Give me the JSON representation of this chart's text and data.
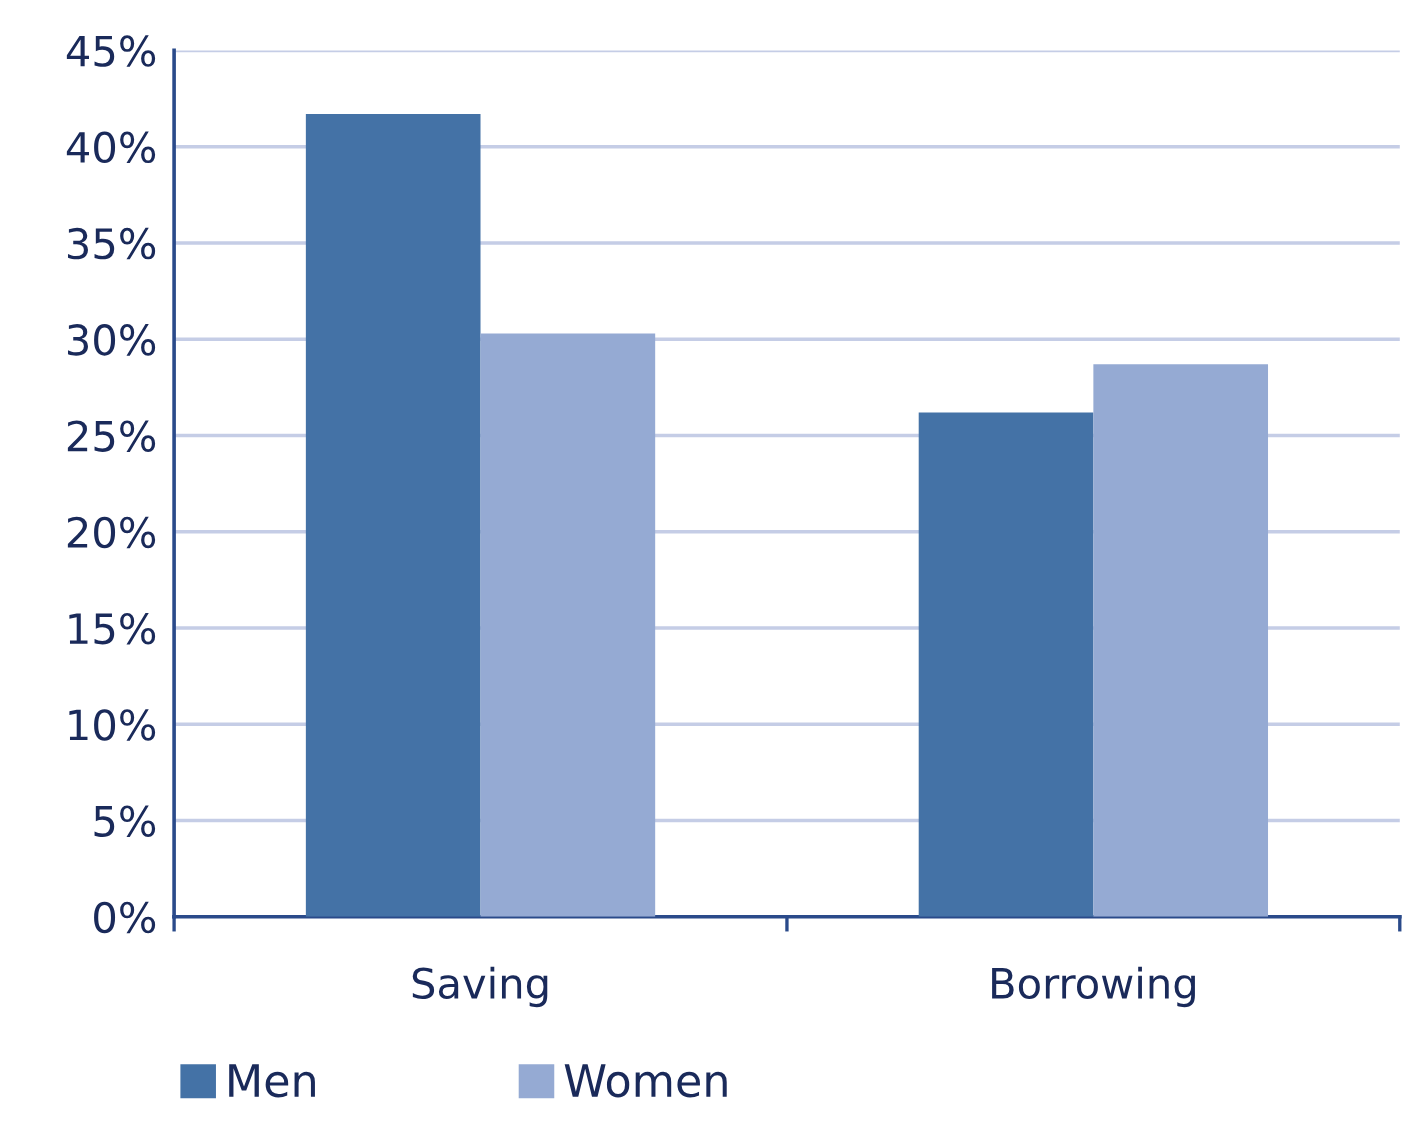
{
  "chart_data": {
    "type": "bar",
    "categories": [
      "Saving",
      "Borrowing"
    ],
    "series": [
      {
        "name": "Men",
        "color": "#4472a6",
        "values": [
          41.7,
          26.2
        ]
      },
      {
        "name": "Women",
        "color": "#95aad3",
        "values": [
          30.3,
          28.7
        ]
      }
    ],
    "ylim": [
      0,
      45
    ],
    "yticks": [
      {
        "value": 0,
        "label": "0%"
      },
      {
        "value": 5,
        "label": "5%"
      },
      {
        "value": 10,
        "label": "10%"
      },
      {
        "value": 15,
        "label": "15%"
      },
      {
        "value": 20,
        "label": "20%"
      },
      {
        "value": 25,
        "label": "25%"
      },
      {
        "value": 30,
        "label": "30%"
      },
      {
        "value": 35,
        "label": "35%"
      },
      {
        "value": 40,
        "label": "40%"
      },
      {
        "value": 45,
        "label": "45%"
      }
    ],
    "grid": "y",
    "legend": "bottom left"
  }
}
